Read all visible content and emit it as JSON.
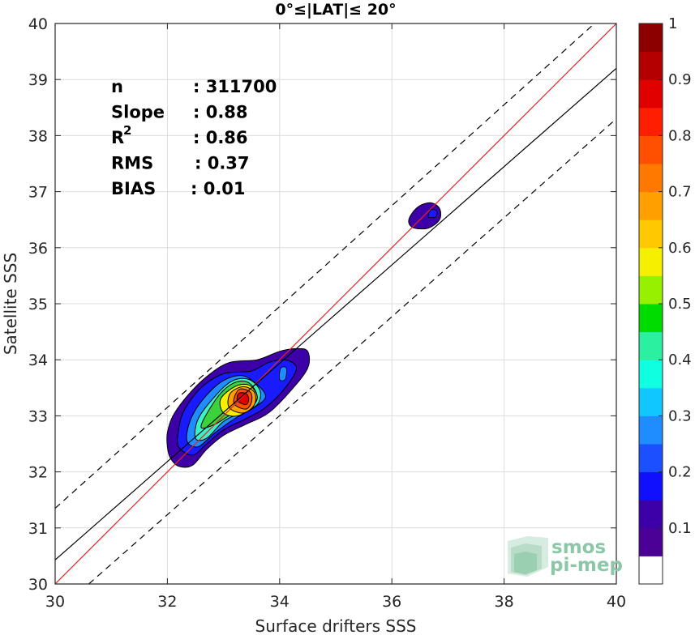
{
  "chart_data": {
    "type": "contour",
    "title": "0°≤|LAT|≤ 20°",
    "xlabel": "Surface drifters SSS",
    "ylabel": "Satellite SSS",
    "xlim": [
      30,
      40
    ],
    "ylim": [
      30,
      40
    ],
    "x_ticks": [
      "30",
      "32",
      "34",
      "36",
      "38",
      "40"
    ],
    "y_ticks": [
      "30",
      "31",
      "32",
      "33",
      "34",
      "35",
      "36",
      "37",
      "38",
      "39",
      "40"
    ],
    "grid": true,
    "stats": [
      {
        "label": "n",
        "value": ": 311700"
      },
      {
        "label": "Slope",
        "value": ": 0.88"
      },
      {
        "label": "R",
        "sup": "2",
        "value": ": 0.86"
      },
      {
        "label": "RMS",
        "value": ": 0.37"
      },
      {
        "label": "BIAS",
        "value": ": 0.01"
      }
    ],
    "lines": [
      {
        "kind": "one-to-one",
        "color": "#e8231e",
        "points": [
          [
            30,
            30
          ],
          [
            40,
            40
          ]
        ]
      },
      {
        "kind": "regression",
        "color": "#000000",
        "points": [
          [
            30,
            30.43
          ],
          [
            40,
            39.2
          ]
        ]
      },
      {
        "kind": "upper-bound",
        "color": "#000000",
        "dashed": true,
        "points": [
          [
            30,
            31.35
          ],
          [
            40,
            40.35
          ]
        ]
      },
      {
        "kind": "lower-bound",
        "color": "#000000",
        "dashed": true,
        "points": [
          [
            30.6,
            30
          ],
          [
            40,
            38.3
          ]
        ]
      }
    ],
    "density_levels": [
      {
        "level": 0.05,
        "color": "#3d00a8",
        "points": [
          [
            32.0,
            32.45
          ],
          [
            32.05,
            32.25
          ],
          [
            32.2,
            32.1
          ],
          [
            32.45,
            32.12
          ],
          [
            32.7,
            32.4
          ],
          [
            33.0,
            32.65
          ],
          [
            33.4,
            32.85
          ],
          [
            33.8,
            33.05
          ],
          [
            34.2,
            33.45
          ],
          [
            34.5,
            33.85
          ],
          [
            34.5,
            34.15
          ],
          [
            34.3,
            34.2
          ],
          [
            34.0,
            34.15
          ],
          [
            33.6,
            34.0
          ],
          [
            33.1,
            33.95
          ],
          [
            32.7,
            33.7
          ],
          [
            32.35,
            33.35
          ],
          [
            32.1,
            33.0
          ],
          [
            32.0,
            32.7
          ]
        ]
      },
      {
        "level": 0.2,
        "color": "#1a1aff",
        "points": [
          [
            32.2,
            32.45
          ],
          [
            32.45,
            32.3
          ],
          [
            32.7,
            32.5
          ],
          [
            33.0,
            32.75
          ],
          [
            33.4,
            32.95
          ],
          [
            33.75,
            33.15
          ],
          [
            34.1,
            33.5
          ],
          [
            34.3,
            33.85
          ],
          [
            34.1,
            34.0
          ],
          [
            33.8,
            33.95
          ],
          [
            33.5,
            33.8
          ],
          [
            33.0,
            33.75
          ],
          [
            32.6,
            33.5
          ],
          [
            32.3,
            33.1
          ],
          [
            32.2,
            32.75
          ]
        ]
      },
      {
        "level": 0.3,
        "color": "#1f8cff",
        "points": [
          [
            32.35,
            32.55
          ],
          [
            32.55,
            32.45
          ],
          [
            32.85,
            32.7
          ],
          [
            33.2,
            32.95
          ],
          [
            33.55,
            33.15
          ],
          [
            33.75,
            33.35
          ],
          [
            33.55,
            33.6
          ],
          [
            33.3,
            33.72
          ],
          [
            32.95,
            33.6
          ],
          [
            32.6,
            33.25
          ],
          [
            32.4,
            32.9
          ]
        ]
      },
      {
        "level": 0.4,
        "color": "#3cf0c8",
        "points": [
          [
            32.5,
            32.6
          ],
          [
            32.7,
            32.6
          ],
          [
            33.0,
            32.9
          ],
          [
            33.3,
            33.05
          ],
          [
            33.6,
            33.2
          ],
          [
            33.65,
            33.45
          ],
          [
            33.45,
            33.65
          ],
          [
            33.15,
            33.62
          ],
          [
            32.85,
            33.35
          ],
          [
            32.55,
            32.95
          ]
        ]
      },
      {
        "level": 0.5,
        "color": "#3cd23c",
        "points": [
          [
            32.6,
            32.8
          ],
          [
            32.85,
            32.85
          ],
          [
            33.1,
            33.0
          ],
          [
            33.4,
            33.1
          ],
          [
            33.6,
            33.3
          ],
          [
            33.5,
            33.55
          ],
          [
            33.3,
            33.62
          ],
          [
            33.05,
            33.5
          ],
          [
            32.8,
            33.2
          ]
        ]
      },
      {
        "level": 0.6,
        "color": "#f4f000",
        "points": [
          [
            33.0,
            33.05
          ],
          [
            33.25,
            33.0
          ],
          [
            33.5,
            33.15
          ],
          [
            33.6,
            33.35
          ],
          [
            33.45,
            33.55
          ],
          [
            33.2,
            33.52
          ],
          [
            32.95,
            33.3
          ]
        ]
      },
      {
        "level": 0.7,
        "color": "#ffa000",
        "points": [
          [
            33.1,
            33.15
          ],
          [
            33.35,
            33.05
          ],
          [
            33.55,
            33.2
          ],
          [
            33.55,
            33.42
          ],
          [
            33.35,
            33.52
          ],
          [
            33.12,
            33.4
          ]
        ]
      },
      {
        "level": 0.8,
        "color": "#ff4f00",
        "points": [
          [
            33.2,
            33.2
          ],
          [
            33.4,
            33.12
          ],
          [
            33.5,
            33.25
          ],
          [
            33.48,
            33.42
          ],
          [
            33.3,
            33.48
          ],
          [
            33.2,
            33.35
          ]
        ]
      },
      {
        "level": 0.9,
        "color": "#e00000",
        "points": [
          [
            33.25,
            33.27
          ],
          [
            33.4,
            33.2
          ],
          [
            33.45,
            33.3
          ],
          [
            33.4,
            33.4
          ],
          [
            33.27,
            33.4
          ]
        ]
      }
    ],
    "secondary_peak": {
      "level": 0.05,
      "color": "#3d00a8",
      "points": [
        [
          36.3,
          36.45
        ],
        [
          36.4,
          36.35
        ],
        [
          36.65,
          36.35
        ],
        [
          36.85,
          36.5
        ],
        [
          36.85,
          36.7
        ],
        [
          36.7,
          36.8
        ],
        [
          36.5,
          36.75
        ],
        [
          36.35,
          36.6
        ]
      ]
    },
    "secondary_core": {
      "level": 0.2,
      "color": "#1a1aff",
      "points": [
        [
          36.65,
          36.55
        ],
        [
          36.78,
          36.55
        ],
        [
          36.8,
          36.65
        ],
        [
          36.7,
          36.68
        ]
      ]
    },
    "shoulder": {
      "level": 0.3,
      "color": "#1f8cff",
      "points": [
        [
          34.0,
          33.65
        ],
        [
          34.1,
          33.65
        ],
        [
          34.12,
          33.85
        ],
        [
          34.02,
          33.85
        ]
      ]
    },
    "colorbar": {
      "range": [
        0,
        1
      ],
      "tick_labels": [
        "0.1",
        "0.2",
        "0.3",
        "0.4",
        "0.5",
        "0.6",
        "0.7",
        "0.8",
        "0.9",
        "1"
      ],
      "tick_values": [
        0.1,
        0.2,
        0.3,
        0.4,
        0.5,
        0.6,
        0.7,
        0.8,
        0.9,
        1.0
      ],
      "colors": [
        "#ffffff",
        "#4b0096",
        "#3d00a8",
        "#1010ff",
        "#1a50ff",
        "#1f8cff",
        "#10c8ff",
        "#10ffe0",
        "#2bf0a0",
        "#00dc00",
        "#96f000",
        "#f4f000",
        "#ffc800",
        "#ffa000",
        "#ff7800",
        "#ff4f00",
        "#ff1e00",
        "#e00000",
        "#b40000",
        "#8c0000"
      ]
    },
    "logo": {
      "line1": "smos",
      "line2": "pi-mep"
    }
  }
}
